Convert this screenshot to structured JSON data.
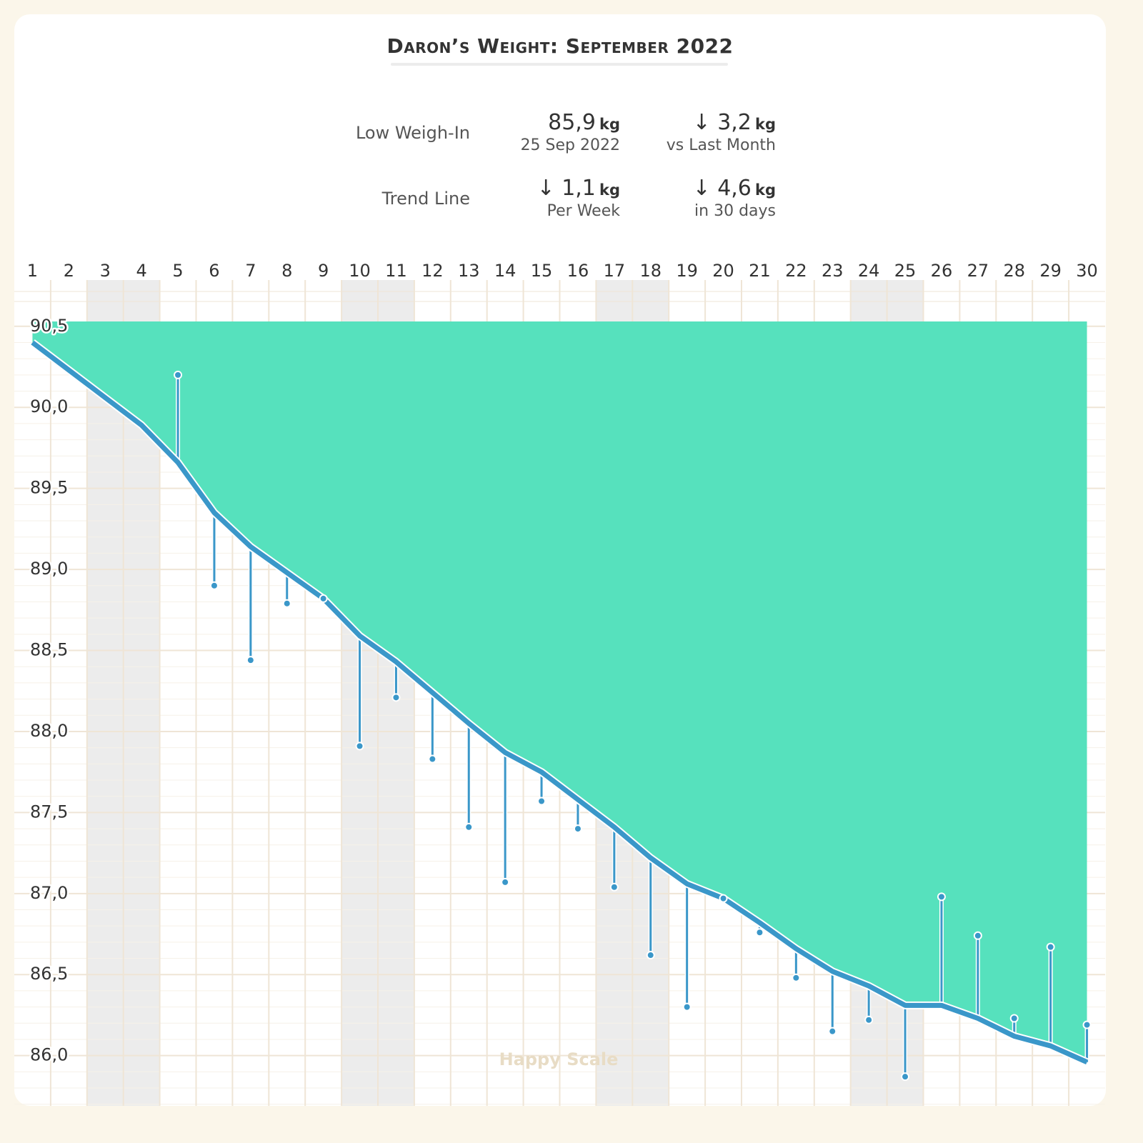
{
  "chart_data": {
    "type": "line",
    "title": "Daron’s Weight: September 2022",
    "watermark": "Happy Scale",
    "summary": {
      "low_label": "Low Weigh-In",
      "low_value": "85,9",
      "low_unit": "kg",
      "low_date": "25 Sep 2022",
      "month_value": "↓ 3,2",
      "month_unit": "kg",
      "month_caption": "vs Last Month",
      "trend_label": "Trend Line",
      "week_value": "↓ 1,1",
      "week_unit": "kg",
      "week_caption": "Per Week",
      "days_value": "↓ 4,6",
      "days_unit": "kg",
      "days_caption": "in 30 days"
    },
    "x": [
      1,
      2,
      3,
      4,
      5,
      6,
      7,
      8,
      9,
      10,
      11,
      12,
      13,
      14,
      15,
      16,
      17,
      18,
      19,
      20,
      21,
      22,
      23,
      24,
      25,
      26,
      27,
      28,
      29,
      30
    ],
    "xlim": [
      0.5,
      30.5
    ],
    "shaded_days": [
      3,
      4,
      10,
      11,
      17,
      18,
      24,
      25
    ],
    "shade_color": "#ececec",
    "area_color": "#56e1bd",
    "trend": {
      "color": "#3a97c9",
      "values": [
        90.4,
        90.23,
        90.06,
        89.89,
        89.66,
        89.35,
        89.14,
        88.98,
        88.82,
        88.59,
        88.43,
        88.24,
        88.05,
        87.87,
        87.75,
        87.58,
        87.41,
        87.22,
        87.06,
        86.97,
        86.82,
        86.66,
        86.52,
        86.43,
        86.31,
        86.31,
        86.23,
        86.12,
        86.06,
        85.96
      ]
    },
    "weigh_ins": {
      "color": "#3a97c9",
      "values": [
        null,
        null,
        null,
        null,
        90.2,
        88.9,
        88.44,
        88.79,
        88.82,
        87.91,
        88.21,
        87.83,
        87.41,
        87.07,
        87.57,
        87.4,
        87.04,
        86.62,
        86.3,
        86.97,
        86.76,
        86.48,
        86.15,
        86.22,
        85.87,
        86.98,
        86.74,
        86.23,
        86.67,
        86.19
      ]
    },
    "ylim": [
      85.69,
      90.53
    ],
    "yticks": [
      {
        "value": 86,
        "label": "86,0"
      },
      {
        "value": 86.5,
        "label": "86,5"
      },
      {
        "value": 87,
        "label": "87,0"
      },
      {
        "value": 87.5,
        "label": "87,5"
      },
      {
        "value": 88,
        "label": "88,0"
      },
      {
        "value": 88.5,
        "label": "88,5"
      },
      {
        "value": 89,
        "label": "89,0"
      },
      {
        "value": 89.5,
        "label": "89,5"
      },
      {
        "value": 90,
        "label": "90,0"
      },
      {
        "value": 90.5,
        "label": "90,5"
      }
    ],
    "minor_grid_step": 0.1,
    "grid": true,
    "grid_color": "#efe5d6"
  }
}
